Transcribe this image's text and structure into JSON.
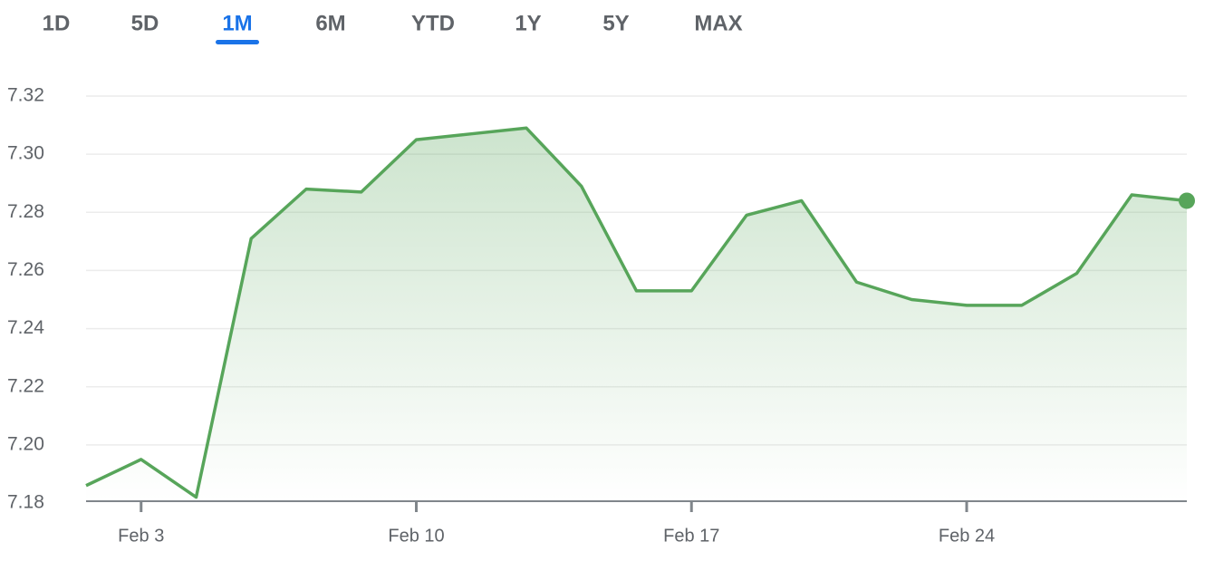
{
  "tabs": {
    "labels": [
      "1D",
      "5D",
      "1M",
      "6M",
      "YTD",
      "1Y",
      "5Y",
      "MAX"
    ],
    "selected": 2
  },
  "chart_data": {
    "type": "line",
    "categories": [
      null,
      "Feb 3",
      null,
      null,
      null,
      null,
      "Feb 10",
      null,
      null,
      null,
      null,
      "Feb 17",
      null,
      null,
      null,
      null,
      "Feb 24",
      null,
      null,
      null,
      null
    ],
    "series": [
      {
        "color": "#57a55a",
        "values": [
          7.186,
          7.195,
          7.182,
          7.271,
          7.288,
          7.287,
          7.305,
          7.307,
          7.309,
          7.289,
          7.253,
          7.253,
          7.279,
          7.284,
          7.256,
          7.25,
          7.248,
          7.248,
          7.259,
          7.286,
          7.284
        ]
      }
    ],
    "ylim": [
      7.18,
      7.32
    ],
    "yticks": [
      7.18,
      {
        "value": 7.2,
        "label": "7.20"
      },
      7.22,
      7.24,
      7.26,
      7.28,
      {
        "value": 7.3,
        "label": "7.30"
      },
      7.32
    ],
    "grid": true,
    "area": true,
    "end_marker": true
  }
}
